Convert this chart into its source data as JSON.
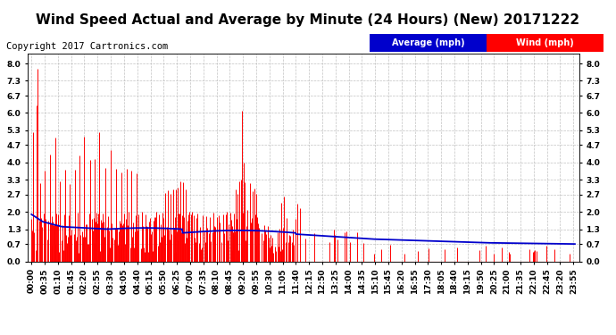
{
  "title": "Wind Speed Actual and Average by Minute (24 Hours) (New) 20171222",
  "copyright": "Copyright 2017 Cartronics.com",
  "yticks": [
    0.0,
    0.7,
    1.3,
    2.0,
    2.7,
    3.3,
    4.0,
    4.7,
    5.3,
    6.0,
    6.7,
    7.3,
    8.0
  ],
  "ylim": [
    0.0,
    8.4
  ],
  "bg_color": "#ffffff",
  "plot_bg_color": "#ffffff",
  "grid_color": "#bbbbbb",
  "bar_color": "#ff0000",
  "dark_bar_color": "#333333",
  "avg_line_color": "#0000cc",
  "legend_avg_bg": "#0000cc",
  "legend_wind_bg": "#ff0000",
  "title_fontsize": 11,
  "copyright_fontsize": 7.5,
  "tick_label_fontsize": 6.5,
  "n_minutes": 1440,
  "seed": 99
}
